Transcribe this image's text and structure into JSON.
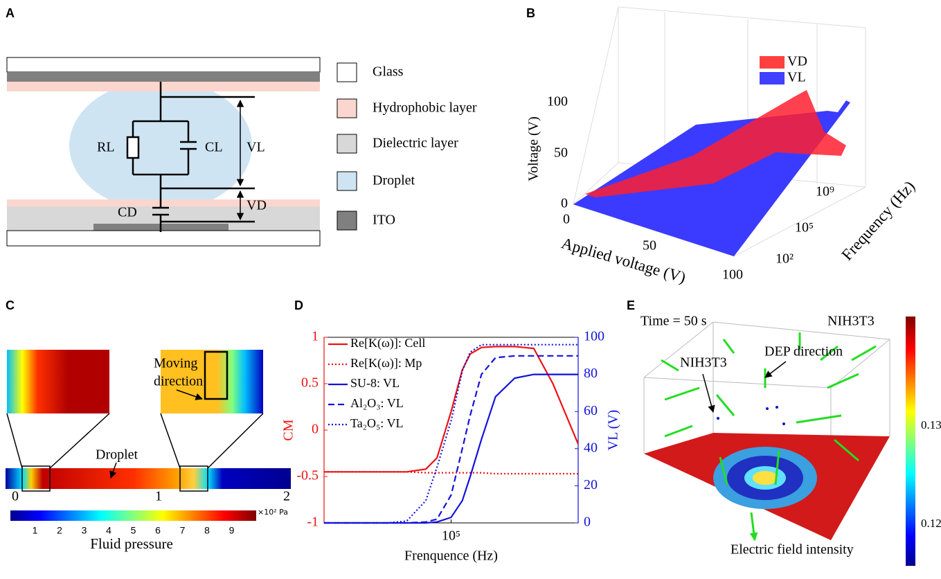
{
  "panel_a": {
    "label": "A",
    "circuit": {
      "rl": "RL",
      "cl": "CL",
      "vl": "VL",
      "vd": "VD",
      "cd": "CD"
    },
    "legend": [
      "Glass",
      "Hydrophobic layer",
      "Dielectric layer",
      "Droplet",
      "ITO"
    ]
  },
  "panel_b": {
    "label": "B",
    "legend": [
      "VD",
      "VL"
    ],
    "y_label": "Voltage (V)",
    "y_ticks": [
      "0",
      "50",
      "100"
    ],
    "x_label": "Applied voltage (V)",
    "x_ticks": [
      "0",
      "50",
      "100"
    ],
    "z_label": "Frequency (Hz)",
    "z_ticks": [
      "10²",
      "10⁵",
      "10⁹"
    ]
  },
  "panel_c": {
    "label": "C",
    "moving": [
      "Moving",
      "direction"
    ],
    "droplet": "Droplet",
    "x_ticks": [
      "0",
      "1",
      "2"
    ],
    "colorbar_ticks": [
      "1",
      "2",
      "3",
      "4",
      "5",
      "6",
      "7",
      "8",
      "9"
    ],
    "colorbar_unit": "×10²  Pa",
    "colorbar_label": "Fluid pressure"
  },
  "chart_data": {
    "type": "line",
    "panel_label": "D",
    "x_label": "Frenquence (Hz)",
    "y_label": "CM",
    "y2_label": "VL (V)",
    "log_x": true,
    "xlim": [
      1000,
      10000000
    ],
    "xticks": [
      {
        "value": 100000,
        "label": "10⁵"
      }
    ],
    "ylim": [
      -1,
      1
    ],
    "yticks": [
      -1,
      -0.5,
      0,
      0.5,
      1
    ],
    "y2lim": [
      0,
      100
    ],
    "y2ticks": [
      0,
      20,
      40,
      60,
      80,
      100
    ],
    "x": [
      1000,
      3000,
      10000,
      20000,
      40000,
      60000,
      100000,
      150000,
      200000,
      300000,
      500000,
      1000000,
      2000000,
      4000000,
      10000000
    ],
    "series": [
      {
        "name": "Re[K(ω)]: Cell",
        "color": "#ee1111",
        "dash": "solid",
        "values": [
          -0.45,
          -0.45,
          -0.45,
          -0.45,
          -0.42,
          -0.3,
          0.2,
          0.65,
          0.82,
          0.89,
          0.9,
          0.9,
          0.88,
          0.5,
          -0.15
        ]
      },
      {
        "name": "Re[K(ω)]: Mp",
        "color": "#ee1111",
        "dash": "dotted",
        "values": [
          -0.45,
          -0.45,
          -0.45,
          -0.45,
          -0.46,
          -0.46,
          -0.46,
          -0.46,
          -0.46,
          -0.46,
          -0.47,
          -0.47,
          -0.47,
          -0.47,
          -0.47
        ]
      },
      {
        "name": "SU-8:  VL",
        "color": "#1111dd",
        "dash": "solid",
        "axis": "y2",
        "values": [
          0,
          0,
          0,
          0,
          0,
          0.5,
          3,
          12,
          25,
          45,
          68,
          78,
          80,
          80,
          80
        ]
      },
      {
        "name": "Al₂O₃:  VL",
        "color": "#1111dd",
        "dash": "dashed",
        "axis": "y2",
        "values": [
          0,
          0,
          0,
          0,
          0.5,
          2,
          15,
          40,
          58,
          80,
          89,
          90,
          90,
          90,
          90
        ]
      },
      {
        "name": "Ta₂O₅:  VL",
        "color": "#1111dd",
        "dash": "dotted",
        "axis": "y2",
        "values": [
          0,
          0,
          0,
          1,
          12,
          30,
          55,
          82,
          92,
          96,
          96,
          96,
          96,
          96,
          96
        ]
      }
    ]
  },
  "panel_e": {
    "label": "E",
    "time": "Time = 50 s",
    "cell": "NIH3T3",
    "cell_pointer": "NIH3T3",
    "dep": "DEP direction",
    "floor_label": "Electric field intensity",
    "colorbar_ticks": [
      "0.13",
      "0.12"
    ]
  }
}
